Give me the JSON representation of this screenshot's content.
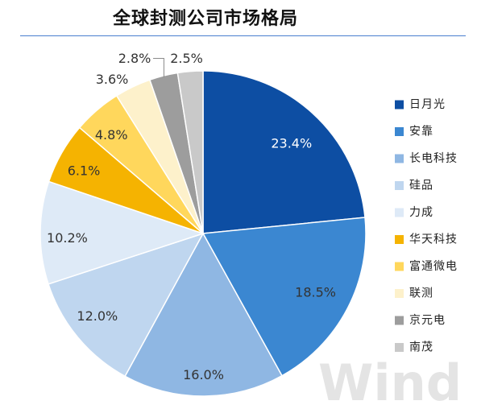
{
  "watermark": "Wind",
  "chart_data": {
    "type": "pie",
    "title": "全球封测公司市场格局",
    "categories": [
      "日月光",
      "安靠",
      "长电科技",
      "硅品",
      "力成",
      "华天科技",
      "富通微电",
      "联测",
      "京元电",
      "南茂"
    ],
    "values": [
      23.4,
      18.5,
      16.0,
      12.0,
      10.2,
      6.1,
      4.8,
      3.6,
      2.8,
      2.5
    ],
    "unit": "%",
    "colors": [
      "#0d4ea3",
      "#3b87d1",
      "#8fb7e3",
      "#bfd6ef",
      "#deeaf7",
      "#f5b301",
      "#ffd75c",
      "#fdf1cb",
      "#9d9d9d",
      "#c9c9c9"
    ],
    "legend": "right"
  }
}
